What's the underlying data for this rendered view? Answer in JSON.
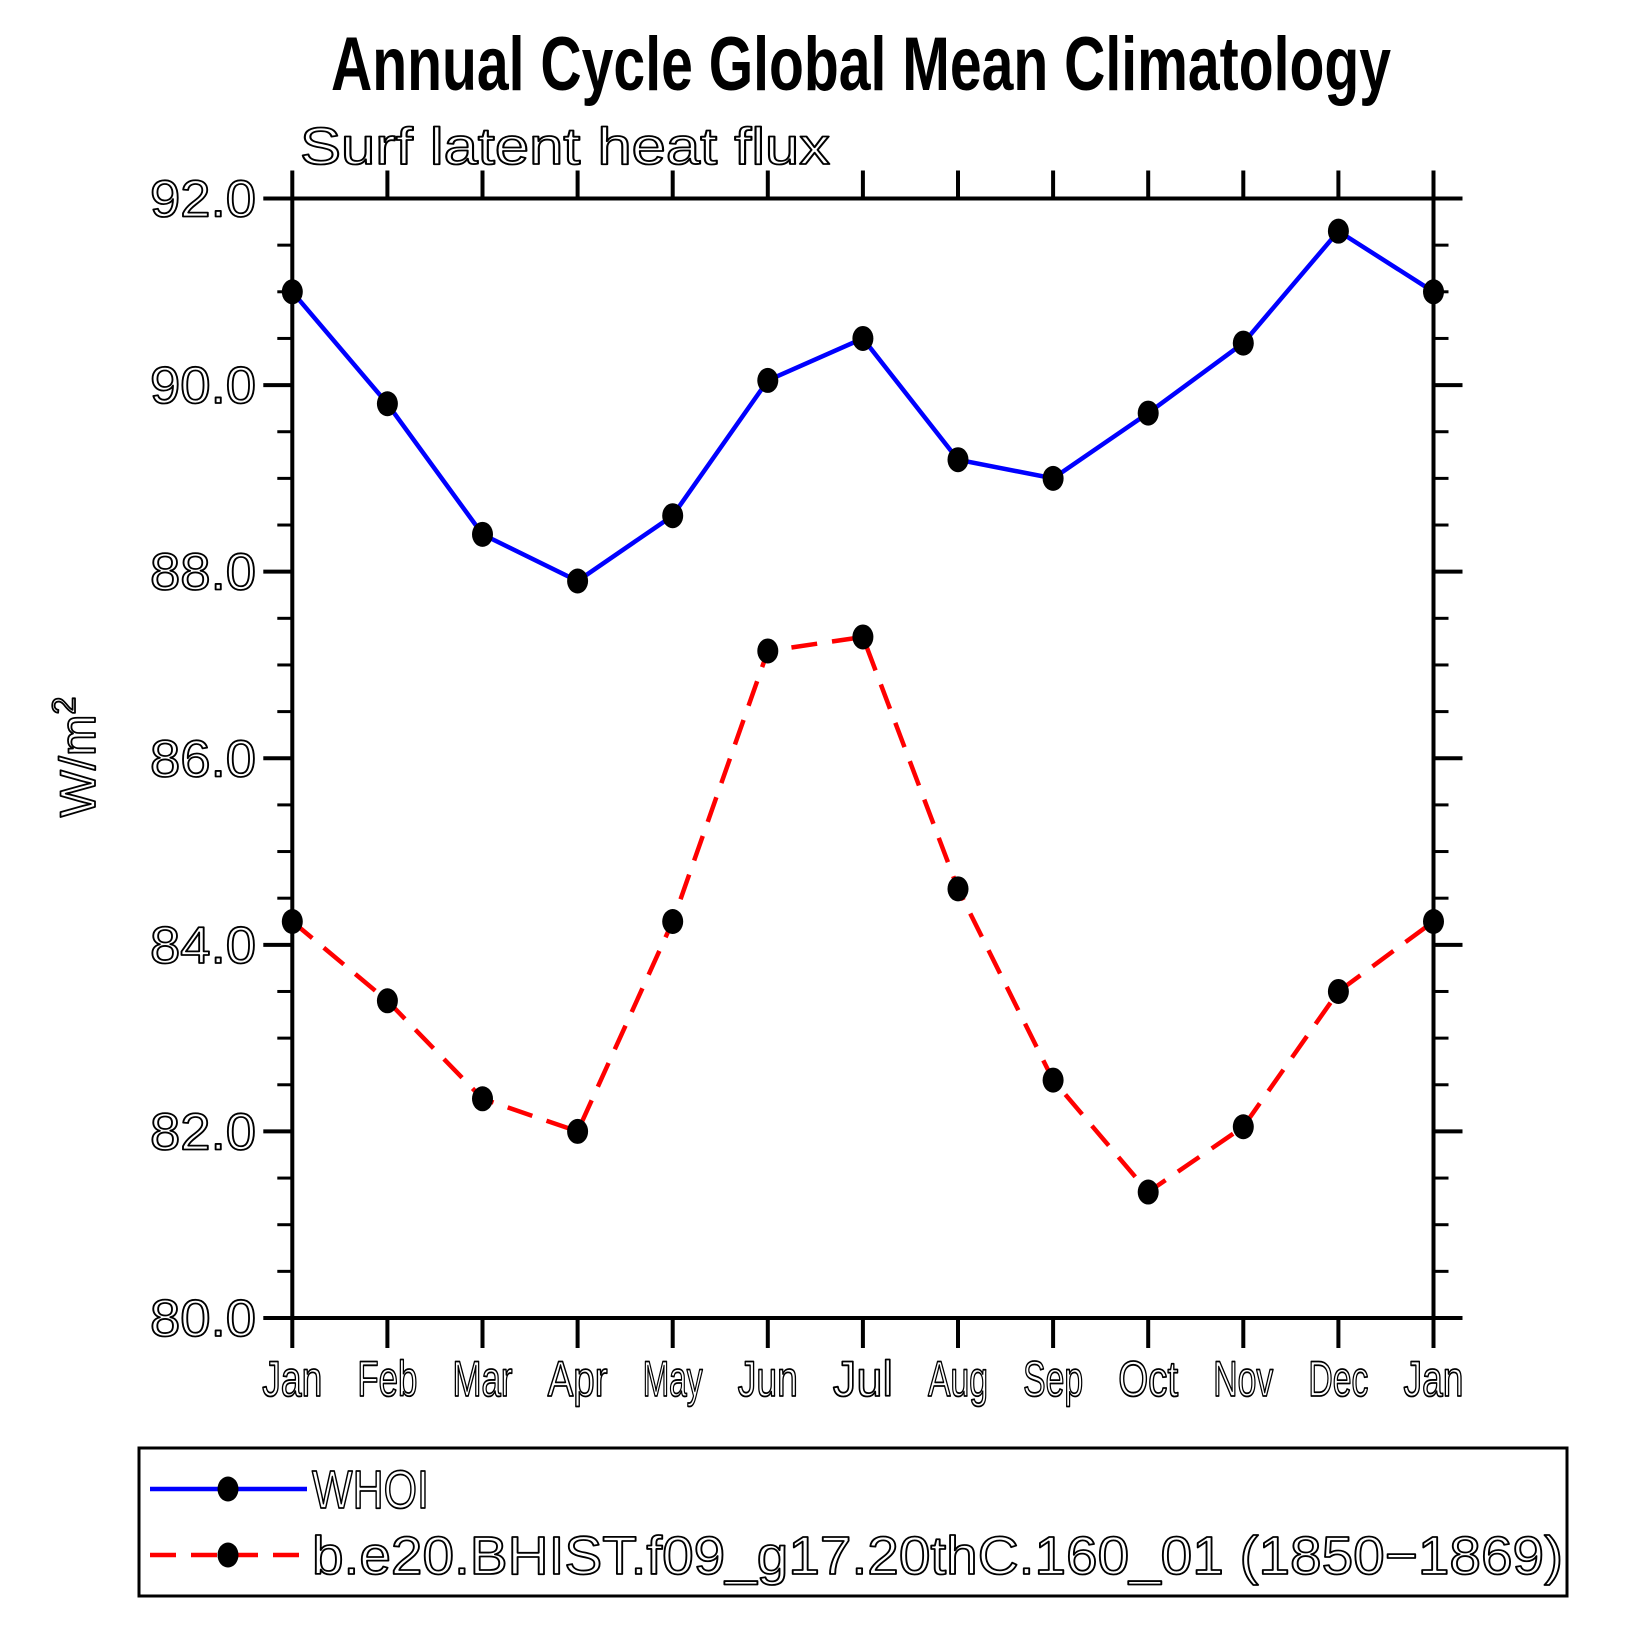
{
  "page": {
    "background": "#ffffff"
  },
  "chart_data": {
    "type": "line",
    "title": "Annual Cycle Global Mean Climatology",
    "subtitle": "Surf latent heat flux",
    "ylabel_base": "W/m",
    "ylabel_sup": "2",
    "categories": [
      "Jan",
      "Feb",
      "Mar",
      "Apr",
      "May",
      "Jun",
      "Jul",
      "Aug",
      "Sep",
      "Oct",
      "Nov",
      "Dec",
      "Jan"
    ],
    "ylim": [
      80,
      92
    ],
    "ytick_major_step": 2.0,
    "ytick_minor_step": 0.5,
    "ytick_labels": [
      "92.0",
      "90.0",
      "88.0",
      "86.0",
      "84.0",
      "82.0",
      "80.0"
    ],
    "grid": false,
    "legend_position": "bottom",
    "marker_color": "#000000",
    "axis_color": "#000000",
    "series": [
      {
        "name": "WHOI",
        "color": "#0000ff",
        "line_style": "solid",
        "values": [
          91.0,
          89.8,
          88.4,
          87.9,
          88.6,
          90.05,
          90.5,
          89.2,
          89.0,
          89.7,
          90.45,
          91.65,
          91.0
        ]
      },
      {
        "name": "b.e20.BHIST.f09_g17.20thC.160_01 (1850−1869)",
        "color": "#ff0000",
        "line_style": "dashed",
        "values": [
          84.25,
          83.4,
          82.35,
          82.0,
          84.25,
          87.15,
          87.3,
          84.6,
          82.55,
          81.35,
          82.05,
          83.5,
          84.25
        ]
      }
    ]
  }
}
